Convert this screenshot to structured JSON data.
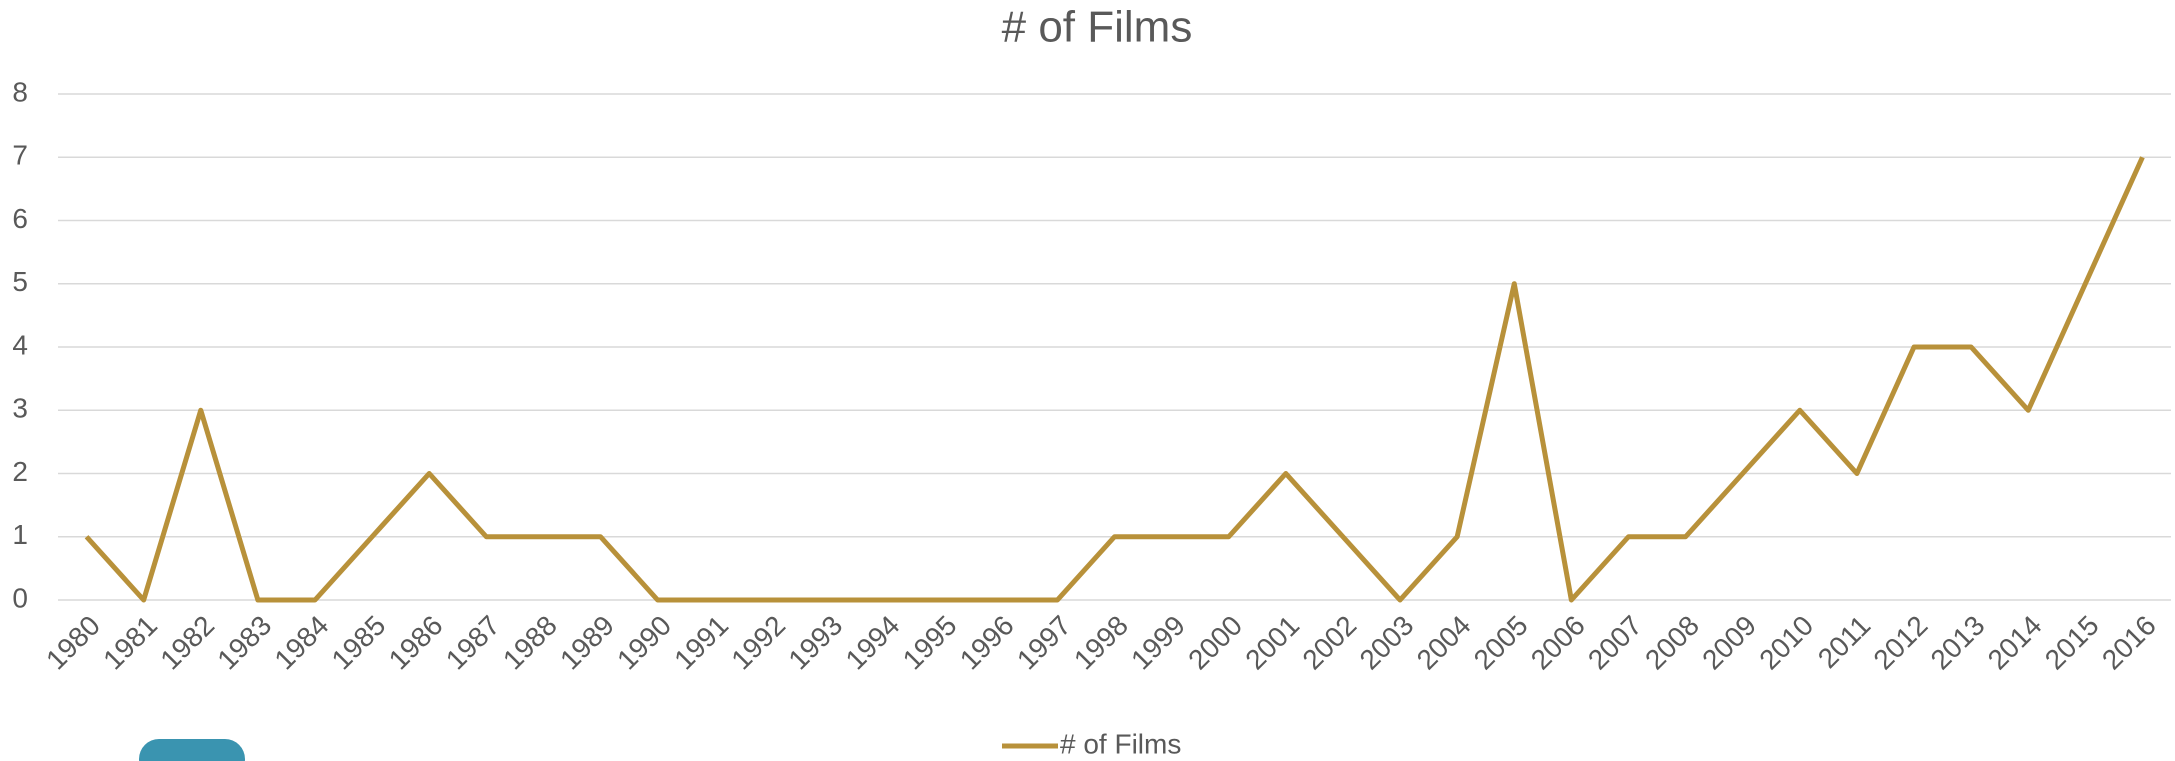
{
  "chart_data": {
    "type": "line",
    "title": "# of Films",
    "categories": [
      "1980",
      "1981",
      "1982",
      "1983",
      "1984",
      "1985",
      "1986",
      "1987",
      "1988",
      "1989",
      "1990",
      "1991",
      "1992",
      "1993",
      "1994",
      "1995",
      "1996",
      "1997",
      "1998",
      "1999",
      "2000",
      "2001",
      "2002",
      "2003",
      "2004",
      "2005",
      "2006",
      "2007",
      "2008",
      "2009",
      "2010",
      "2011",
      "2012",
      "2013",
      "2014",
      "2015",
      "2016"
    ],
    "series": [
      {
        "name": "# of Films",
        "color": "#b8913a",
        "values": [
          1,
          0,
          3,
          0,
          0,
          1,
          2,
          1,
          1,
          1,
          0,
          0,
          0,
          0,
          0,
          0,
          0,
          0,
          1,
          1,
          1,
          2,
          1,
          0,
          1,
          5,
          0,
          1,
          1,
          2,
          3,
          2,
          4,
          4,
          3,
          5,
          7
        ]
      }
    ],
    "ylim": [
      0,
      8
    ],
    "yticks": [
      0,
      1,
      2,
      3,
      4,
      5,
      6,
      7,
      8
    ],
    "grid": true,
    "legend": "bottom"
  }
}
